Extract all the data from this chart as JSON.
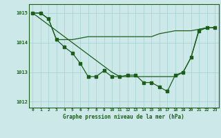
{
  "title": "Graphe pression niveau de la mer (hPa)",
  "background_color": "#cce8e8",
  "grid_color": "#aad4d4",
  "line_color": "#1a5e1a",
  "x_values": [
    0,
    1,
    2,
    3,
    4,
    5,
    6,
    7,
    8,
    9,
    10,
    11,
    12,
    13,
    14,
    15,
    16,
    17,
    18,
    19,
    20,
    21,
    22,
    23
  ],
  "line_main": [
    1015.0,
    1015.0,
    1014.8,
    1014.1,
    1013.85,
    1013.65,
    1013.3,
    1012.85,
    1012.85,
    1013.05,
    1012.85,
    1012.85,
    1012.9,
    1012.9,
    1012.65,
    1012.65,
    1012.5,
    1012.35,
    1012.9,
    1013.0,
    1013.5,
    1014.4,
    1014.5,
    1014.5
  ],
  "line_straight": [
    1015.0,
    1015.0,
    1014.8,
    1014.1,
    1014.1,
    1014.1,
    1014.15,
    1014.2,
    1014.2,
    1014.2,
    1014.2,
    1014.2,
    1014.2,
    1014.2,
    1014.2,
    1014.2,
    1014.3,
    1014.35,
    1014.4,
    1014.4,
    1014.4,
    1014.45,
    1014.5,
    1014.5
  ],
  "line_diagonal": [
    1015.0,
    1014.8,
    1014.6,
    1014.4,
    1014.2,
    1014.0,
    1013.8,
    1013.6,
    1013.4,
    1013.2,
    1013.0,
    1012.85,
    1012.85,
    1012.85,
    1012.85,
    1012.85,
    1012.85,
    1012.85,
    1012.85,
    1013.0,
    1013.5,
    1014.45,
    1014.5,
    1014.5
  ],
  "ylim": [
    1011.8,
    1015.3
  ],
  "yticks": [
    1012,
    1013,
    1014,
    1015
  ],
  "xlim": [
    -0.5,
    23.5
  ]
}
